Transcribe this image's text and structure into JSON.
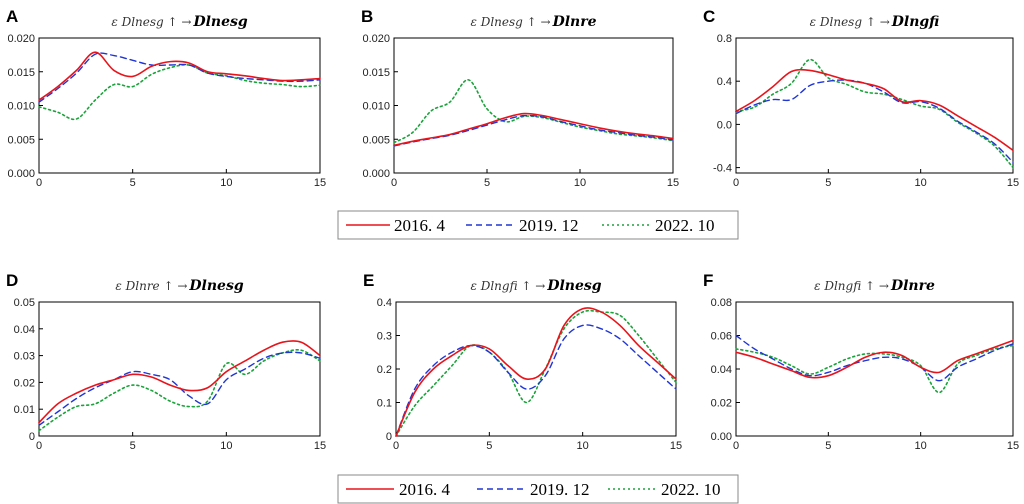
{
  "colors": {
    "s2016": "#e8141b",
    "s2019": "#1f35d6",
    "s2022": "#1aa33a"
  },
  "legend": {
    "top": [
      "2016. 4",
      "2019. 12",
      "2022. 10"
    ],
    "bottom": [
      "2016. 4",
      "2019. 12",
      "2022. 10"
    ]
  },
  "chart_data": [
    {
      "letter": "A",
      "type": "line",
      "title_pre": "ε Dlnesg ↑ →",
      "title_main": "Dlnesg",
      "xlim": [
        0,
        15
      ],
      "ylim": [
        0,
        0.02
      ],
      "xticks": [
        "0",
        "5",
        "10",
        "15"
      ],
      "yticks": [
        "0.000",
        "0.005",
        "0.010",
        "0.015",
        "0.020"
      ],
      "x": [
        0,
        1,
        2,
        3,
        4,
        5,
        6,
        7,
        8,
        9,
        10,
        11,
        12,
        13,
        14,
        15
      ],
      "series": [
        {
          "name": "2016. 4",
          "values": [
            0.0108,
            0.0128,
            0.0152,
            0.0179,
            0.0152,
            0.0143,
            0.0158,
            0.0165,
            0.0163,
            0.015,
            0.0147,
            0.0144,
            0.014,
            0.0137,
            0.0138,
            0.014
          ]
        },
        {
          "name": "2019. 12",
          "values": [
            0.0105,
            0.0125,
            0.0148,
            0.0176,
            0.0174,
            0.0167,
            0.016,
            0.016,
            0.016,
            0.0148,
            0.0143,
            0.014,
            0.0138,
            0.0136,
            0.0136,
            0.0138
          ]
        },
        {
          "name": "2022. 10",
          "values": [
            0.0098,
            0.009,
            0.008,
            0.0108,
            0.0131,
            0.0128,
            0.0146,
            0.0156,
            0.016,
            0.0148,
            0.0144,
            0.0137,
            0.0133,
            0.0131,
            0.0128,
            0.013
          ]
        }
      ]
    },
    {
      "letter": "B",
      "type": "line",
      "title_pre": "ε Dlnesg ↑ →",
      "title_main": "Dlnre",
      "xlim": [
        0,
        15
      ],
      "ylim": [
        0,
        0.02
      ],
      "xticks": [
        "0",
        "5",
        "10",
        "15"
      ],
      "yticks": [
        "0.000",
        "0.005",
        "0.010",
        "0.015",
        "0.020"
      ],
      "x": [
        0,
        1,
        2,
        3,
        4,
        5,
        6,
        7,
        8,
        9,
        10,
        11,
        12,
        13,
        14,
        15
      ],
      "series": [
        {
          "name": "2016. 4",
          "values": [
            0.0041,
            0.0047,
            0.0052,
            0.0057,
            0.0065,
            0.0073,
            0.0082,
            0.0088,
            0.0085,
            0.0079,
            0.0073,
            0.0067,
            0.0062,
            0.0058,
            0.0055,
            0.0051
          ]
        },
        {
          "name": "2019. 12",
          "values": [
            0.004,
            0.0046,
            0.0051,
            0.0056,
            0.0063,
            0.0071,
            0.0079,
            0.0085,
            0.0083,
            0.0076,
            0.007,
            0.0064,
            0.006,
            0.0056,
            0.0053,
            0.0049
          ]
        },
        {
          "name": "2022. 10",
          "values": [
            0.0045,
            0.006,
            0.0092,
            0.0105,
            0.0138,
            0.0095,
            0.0076,
            0.0084,
            0.0082,
            0.0075,
            0.0068,
            0.0063,
            0.0058,
            0.0055,
            0.0052,
            0.0048
          ]
        }
      ]
    },
    {
      "letter": "C",
      "type": "line",
      "title_pre": "ε Dlnesg ↑ →",
      "title_main": "Dlngfi",
      "xlim": [
        0,
        15
      ],
      "ylim": [
        -0.45,
        0.8
      ],
      "xticks": [
        "0",
        "5",
        "10",
        "15"
      ],
      "yticks": [
        "-0.4",
        "0.0",
        "0.4",
        "0.8"
      ],
      "ytick_values": [
        -0.4,
        0,
        0.4,
        0.8
      ],
      "x": [
        0,
        1,
        2,
        3,
        4,
        5,
        6,
        7,
        8,
        9,
        10,
        11,
        12,
        13,
        14,
        15
      ],
      "series": [
        {
          "name": "2016. 4",
          "values": [
            0.12,
            0.22,
            0.35,
            0.49,
            0.5,
            0.46,
            0.41,
            0.38,
            0.33,
            0.21,
            0.22,
            0.18,
            0.08,
            -0.02,
            -0.12,
            -0.24
          ]
        },
        {
          "name": "2019. 12",
          "values": [
            0.1,
            0.18,
            0.23,
            0.23,
            0.36,
            0.4,
            0.41,
            0.38,
            0.3,
            0.2,
            0.21,
            0.15,
            0.03,
            -0.07,
            -0.18,
            -0.35
          ]
        },
        {
          "name": "2022. 10",
          "values": [
            0.12,
            0.16,
            0.28,
            0.38,
            0.6,
            0.43,
            0.37,
            0.3,
            0.28,
            0.23,
            0.17,
            0.14,
            0.02,
            -0.08,
            -0.2,
            -0.4
          ]
        }
      ]
    },
    {
      "letter": "D",
      "type": "line",
      "title_pre": "ε Dlnre ↑ →",
      "title_main": "Dlnesg",
      "xlim": [
        0,
        15
      ],
      "ylim": [
        0,
        0.05
      ],
      "xticks": [
        "0",
        "5",
        "10",
        "15"
      ],
      "yticks": [
        "0",
        "0.01",
        "0.02",
        "0.03",
        "0.04",
        "0.05"
      ],
      "ytick_values": [
        0,
        0.01,
        0.02,
        0.03,
        0.04,
        0.05
      ],
      "x": [
        0,
        1,
        2,
        3,
        4,
        5,
        6,
        7,
        8,
        9,
        10,
        11,
        12,
        13,
        14,
        15
      ],
      "series": [
        {
          "name": "2016. 4",
          "values": [
            0.005,
            0.012,
            0.016,
            0.019,
            0.021,
            0.023,
            0.022,
            0.019,
            0.017,
            0.018,
            0.024,
            0.028,
            0.032,
            0.035,
            0.035,
            0.03
          ]
        },
        {
          "name": "2019. 12",
          "values": [
            0.004,
            0.009,
            0.014,
            0.018,
            0.021,
            0.024,
            0.023,
            0.021,
            0.015,
            0.012,
            0.021,
            0.025,
            0.029,
            0.031,
            0.031,
            0.029
          ]
        },
        {
          "name": "2022. 10",
          "values": [
            0.002,
            0.007,
            0.011,
            0.012,
            0.016,
            0.019,
            0.017,
            0.013,
            0.011,
            0.013,
            0.027,
            0.023,
            0.028,
            0.031,
            0.032,
            0.028
          ]
        }
      ]
    },
    {
      "letter": "E",
      "type": "line",
      "title_pre": "ε Dlngfi ↑ →",
      "title_main": "Dlnesg",
      "xlim": [
        0,
        15
      ],
      "ylim": [
        0,
        0.4
      ],
      "xticks": [
        "0",
        "5",
        "10",
        "15"
      ],
      "yticks": [
        "0",
        "0.1",
        "0.2",
        "0.3",
        "0.4"
      ],
      "ytick_values": [
        0,
        0.1,
        0.2,
        0.3,
        0.4
      ],
      "x": [
        0,
        1,
        2,
        3,
        4,
        5,
        6,
        7,
        8,
        9,
        10,
        11,
        12,
        13,
        14,
        15
      ],
      "series": [
        {
          "name": "2016. 4",
          "values": [
            0,
            0.13,
            0.2,
            0.24,
            0.27,
            0.26,
            0.21,
            0.17,
            0.2,
            0.33,
            0.38,
            0.37,
            0.33,
            0.27,
            0.22,
            0.17
          ]
        },
        {
          "name": "2019. 12",
          "values": [
            0,
            0.14,
            0.21,
            0.25,
            0.27,
            0.25,
            0.19,
            0.14,
            0.18,
            0.29,
            0.33,
            0.32,
            0.29,
            0.24,
            0.19,
            0.14
          ]
        },
        {
          "name": "2022. 10",
          "values": [
            0,
            0.09,
            0.15,
            0.21,
            0.27,
            0.25,
            0.19,
            0.1,
            0.2,
            0.32,
            0.37,
            0.37,
            0.36,
            0.3,
            0.23,
            0.16
          ]
        }
      ]
    },
    {
      "letter": "F",
      "type": "line",
      "title_pre": "ε Dlngfi ↑ →",
      "title_main": "Dlnre",
      "xlim": [
        0,
        15
      ],
      "ylim": [
        0,
        0.08
      ],
      "xticks": [
        "0",
        "5",
        "10",
        "15"
      ],
      "yticks": [
        "0.00",
        "0.02",
        "0.04",
        "0.06",
        "0.08"
      ],
      "ytick_values": [
        0,
        0.02,
        0.04,
        0.06,
        0.08
      ],
      "x": [
        0,
        1,
        2,
        3,
        4,
        5,
        6,
        7,
        8,
        9,
        10,
        11,
        12,
        13,
        14,
        15
      ],
      "series": [
        {
          "name": "2016. 4",
          "values": [
            0.05,
            0.047,
            0.043,
            0.039,
            0.035,
            0.036,
            0.041,
            0.047,
            0.05,
            0.048,
            0.041,
            0.038,
            0.045,
            0.049,
            0.053,
            0.057
          ]
        },
        {
          "name": "2019. 12",
          "values": [
            0.06,
            0.052,
            0.046,
            0.04,
            0.036,
            0.038,
            0.042,
            0.045,
            0.047,
            0.046,
            0.041,
            0.033,
            0.041,
            0.046,
            0.051,
            0.055
          ]
        },
        {
          "name": "2022. 10",
          "values": [
            0.052,
            0.05,
            0.047,
            0.042,
            0.037,
            0.041,
            0.046,
            0.049,
            0.049,
            0.047,
            0.042,
            0.026,
            0.043,
            0.048,
            0.052,
            0.054
          ]
        }
      ]
    }
  ]
}
